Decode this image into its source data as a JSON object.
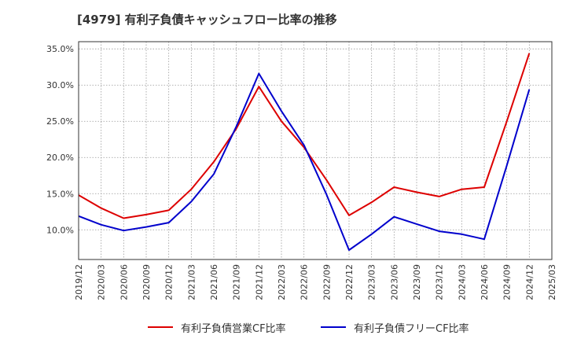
{
  "chart_data": {
    "type": "line",
    "title": "[4979]  有利子負債キャッシュフロー比率の推移",
    "x": [
      "2019/12",
      "2020/03",
      "2020/06",
      "2020/09",
      "2020/12",
      "2021/03",
      "2021/06",
      "2021/09",
      "2021/12",
      "2022/03",
      "2022/06",
      "2022/09",
      "2022/12",
      "2023/03",
      "2023/06",
      "2023/09",
      "2023/12",
      "2024/03",
      "2024/06",
      "2024/09",
      "2024/12",
      "2025/03"
    ],
    "ylim": [
      5.9,
      36.0
    ],
    "yticks": [
      "10.0%",
      "15.0%",
      "20.0%",
      "25.0%",
      "30.0%",
      "35.0%"
    ],
    "ytick_values": [
      10,
      15,
      20,
      25,
      30,
      35
    ],
    "grid": true,
    "legend_position": "bottom",
    "series": [
      {
        "name": "有利子負債営業CF比率",
        "color": "#dd0000",
        "values": [
          14.8,
          13.0,
          11.6,
          12.1,
          12.7,
          15.6,
          19.4,
          24.0,
          29.8,
          25.0,
          21.4,
          16.9,
          12.0,
          13.8,
          15.9,
          15.2,
          14.6,
          15.6,
          15.9,
          25.0,
          34.4,
          null
        ]
      },
      {
        "name": "有利子負債フリーCF比率",
        "color": "#0000cc",
        "values": [
          11.9,
          10.7,
          9.9,
          10.4,
          11.0,
          13.9,
          17.7,
          24.3,
          31.6,
          26.4,
          21.7,
          14.9,
          7.2,
          9.4,
          11.8,
          10.8,
          9.8,
          9.4,
          8.7,
          18.9,
          29.4,
          null
        ]
      }
    ]
  }
}
